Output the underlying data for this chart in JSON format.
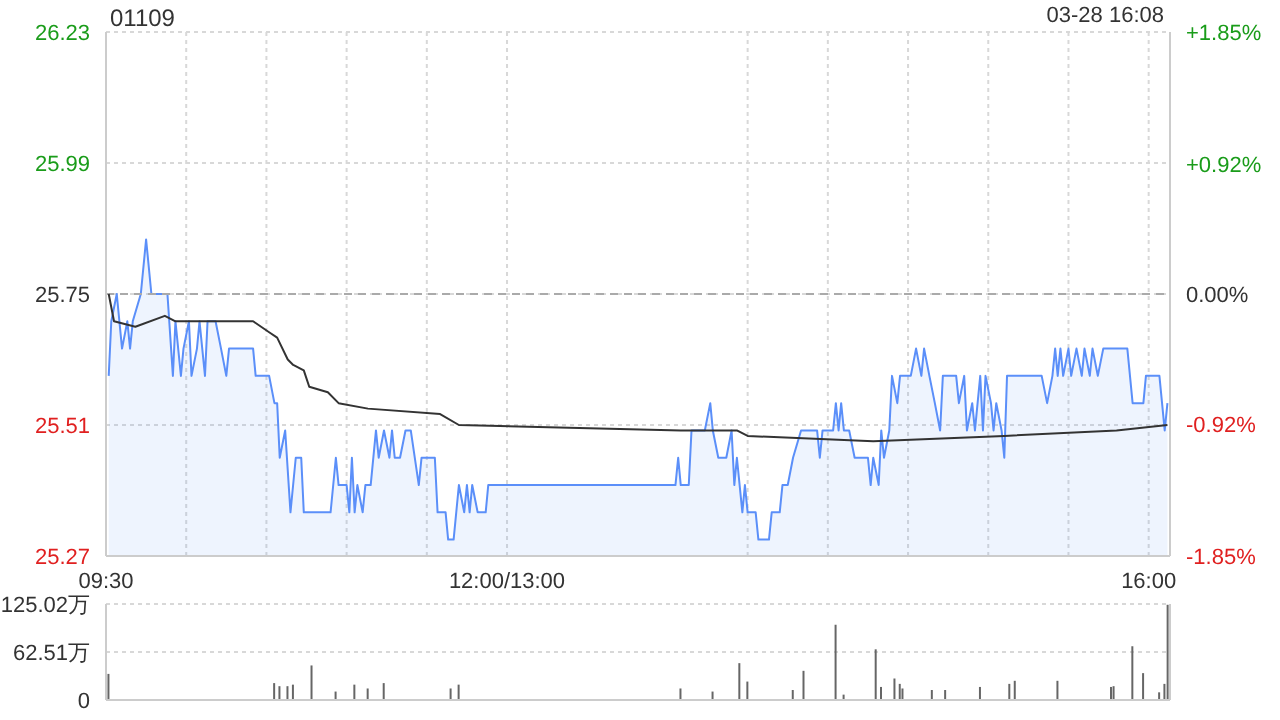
{
  "chart_data": [
    {
      "type": "area",
      "title": "01109",
      "annotations": [
        "03-28 16:08"
      ],
      "xlim": [
        9.5,
        16.133
      ],
      "xticks": [
        {
          "value": 9.5,
          "label": "09:30"
        },
        {
          "value": 10,
          "label": null
        },
        {
          "value": 10.5,
          "label": null
        },
        {
          "value": 11,
          "label": null
        },
        {
          "value": 11.5,
          "label": null
        },
        {
          "value": 12,
          "label": "12:00/13:00"
        },
        {
          "value": 13.5,
          "label": null
        },
        {
          "value": 14,
          "label": null
        },
        {
          "value": 14.5,
          "label": null
        },
        {
          "value": 15,
          "label": null
        },
        {
          "value": 15.5,
          "label": null
        },
        {
          "value": 16,
          "label": "16:00"
        }
      ],
      "ylim": [
        25.27,
        26.23
      ],
      "yticks": [
        25.27,
        25.51,
        25.75,
        25.99,
        26.23
      ],
      "y2lim": [
        -1.85,
        1.85
      ],
      "y2ticks": [
        {
          "value": -1.85,
          "label": "-1.85%"
        },
        {
          "value": -0.92,
          "label": "-0.92%"
        },
        {
          "value": 0,
          "label": "0.00%"
        },
        {
          "value": 0.92,
          "label": "+0.92%"
        },
        {
          "value": 1.85,
          "label": "+1.85%"
        }
      ],
      "grid": true,
      "marker": "none",
      "line_style": "solid",
      "ref_lines": [
        {
          "axis": "y",
          "value": 25.75,
          "line_style": "dashed",
          "color": "#aaaaaa"
        }
      ],
      "series": [
        {
          "color": "#5b8ff9",
          "x": [
            9.517,
            9.533,
            9.567,
            9.6,
            9.633,
            9.65,
            9.667,
            9.717,
            9.75,
            9.783,
            9.883,
            9.917,
            9.933,
            9.967,
            9.983,
            10.017,
            10.033,
            10.067,
            10.083,
            10.117,
            10.133,
            10.183,
            10.217,
            10.25,
            10.267,
            10.417,
            10.433,
            10.517,
            10.55,
            10.567,
            10.583,
            10.617,
            10.65,
            10.683,
            10.717,
            10.733,
            10.9,
            10.933,
            10.95,
            11,
            11.017,
            11.033,
            11.05,
            11.067,
            11.1,
            11.117,
            11.15,
            11.183,
            11.2,
            11.233,
            11.267,
            11.283,
            11.3,
            11.333,
            11.367,
            11.4,
            11.45,
            11.467,
            11.55,
            11.567,
            11.617,
            11.633,
            11.667,
            11.7,
            11.733,
            11.75,
            11.767,
            11.783,
            11.817,
            11.867,
            11.883,
            13.05,
            13.067,
            13.083,
            13.133,
            13.15,
            13.233,
            13.267,
            13.283,
            13.317,
            13.367,
            13.4,
            13.417,
            13.433,
            13.467,
            13.483,
            13.5,
            13.55,
            13.567,
            13.633,
            13.65,
            13.7,
            13.717,
            13.75,
            13.783,
            13.833,
            13.933,
            13.95,
            13.967,
            14.033,
            14.05,
            14.067,
            14.083,
            14.1,
            14.133,
            14.167,
            14.25,
            14.267,
            14.283,
            14.317,
            14.333,
            14.35,
            14.383,
            14.4,
            14.433,
            14.45,
            14.517,
            14.55,
            14.583,
            14.6,
            14.633,
            14.667,
            14.7,
            14.717,
            14.8,
            14.817,
            14.85,
            14.867,
            14.9,
            14.917,
            14.95,
            14.967,
            14.983,
            15.017,
            15.033,
            15.05,
            15.083,
            15.1,
            15.117,
            15.333,
            15.367,
            15.4,
            15.417,
            15.433,
            15.45,
            15.467,
            15.5,
            15.517,
            15.55,
            15.583,
            15.6,
            15.633,
            15.65,
            15.683,
            15.717,
            15.867,
            15.9,
            15.967,
            15.983,
            16.067,
            16.1,
            16.117
          ],
          "values": [
            25.6,
            25.7,
            25.75,
            25.65,
            25.7,
            25.65,
            25.7,
            25.75,
            25.85,
            25.75,
            25.75,
            25.6,
            25.7,
            25.6,
            25.65,
            25.7,
            25.6,
            25.65,
            25.7,
            25.6,
            25.7,
            25.7,
            25.65,
            25.6,
            25.65,
            25.65,
            25.6,
            25.6,
            25.55,
            25.55,
            25.45,
            25.5,
            25.35,
            25.45,
            25.45,
            25.35,
            25.35,
            25.45,
            25.4,
            25.4,
            25.35,
            25.45,
            25.35,
            25.4,
            25.35,
            25.4,
            25.4,
            25.5,
            25.45,
            25.5,
            25.45,
            25.5,
            25.45,
            25.45,
            25.5,
            25.5,
            25.4,
            25.45,
            25.45,
            25.35,
            25.35,
            25.3,
            25.3,
            25.4,
            25.35,
            25.4,
            25.35,
            25.4,
            25.35,
            25.35,
            25.4,
            25.4,
            25.45,
            25.4,
            25.4,
            25.5,
            25.5,
            25.55,
            25.5,
            25.45,
            25.45,
            25.5,
            25.4,
            25.45,
            25.35,
            25.4,
            25.35,
            25.35,
            25.3,
            25.3,
            25.35,
            25.35,
            25.4,
            25.4,
            25.45,
            25.5,
            25.5,
            25.45,
            25.5,
            25.5,
            25.55,
            25.5,
            25.55,
            25.5,
            25.5,
            25.45,
            25.45,
            25.4,
            25.45,
            25.4,
            25.5,
            25.45,
            25.5,
            25.6,
            25.55,
            25.6,
            25.6,
            25.65,
            25.6,
            25.65,
            25.6,
            25.55,
            25.5,
            25.6,
            25.6,
            25.55,
            25.6,
            25.5,
            25.55,
            25.5,
            25.6,
            25.5,
            25.6,
            25.55,
            25.5,
            25.55,
            25.5,
            25.45,
            25.6,
            25.6,
            25.55,
            25.6,
            25.65,
            25.6,
            25.65,
            25.6,
            25.65,
            25.6,
            25.65,
            25.6,
            25.65,
            25.6,
            25.65,
            25.6,
            25.65,
            25.65,
            25.55,
            25.55,
            25.6,
            25.6,
            25.5,
            25.55
          ]
        },
        {
          "type": "line",
          "color": "#333333",
          "x": [
            9.517,
            9.55,
            9.683,
            9.867,
            9.933,
            10.417,
            10.517,
            10.567,
            10.633,
            10.667,
            10.733,
            10.767,
            10.883,
            10.95,
            11.133,
            11.583,
            11.7,
            13.083,
            13.433,
            13.5,
            14.283,
            15.1,
            15.8,
            16.117
          ],
          "values": [
            25.75,
            25.7,
            25.69,
            25.71,
            25.7,
            25.7,
            25.68,
            25.67,
            25.63,
            25.62,
            25.61,
            25.58,
            25.57,
            25.55,
            25.54,
            25.53,
            25.51,
            25.5,
            25.5,
            25.49,
            25.48,
            25.49,
            25.5,
            25.51
          ]
        }
      ]
    },
    {
      "type": "bar",
      "xlim": [
        9.5,
        16.133
      ],
      "ylim": [
        0,
        125.02
      ],
      "yticks": [
        0,
        {
          "value": 62.51,
          "label": "62.51万"
        },
        {
          "value": 125.02,
          "label": "125.02万"
        }
      ],
      "grid": "y",
      "tick_labels": "y",
      "series": [
        {
          "color": "#666666",
          "x": [
            9.517,
            10.55,
            10.583,
            10.633,
            10.667,
            10.783,
            10.933,
            11.05,
            11.133,
            11.233,
            11.65,
            11.7,
            13.083,
            13.283,
            13.45,
            13.5,
            13.783,
            13.85,
            14.05,
            14.1,
            14.3,
            14.333,
            14.417,
            14.45,
            14.467,
            14.65,
            14.733,
            14.95,
            15.133,
            15.167,
            15.433,
            15.767,
            15.783,
            15.9,
            15.967,
            16.067,
            16.1,
            16.12
          ],
          "values": [
            34,
            22,
            18,
            18,
            20,
            45,
            11,
            20,
            15,
            22,
            15,
            20,
            15,
            11,
            48,
            24,
            13,
            38,
            98,
            7,
            66,
            17,
            28,
            21,
            15,
            13,
            13,
            17,
            21,
            25,
            25,
            17,
            18,
            70,
            35,
            10,
            21,
            124
          ]
        }
      ]
    }
  ]
}
